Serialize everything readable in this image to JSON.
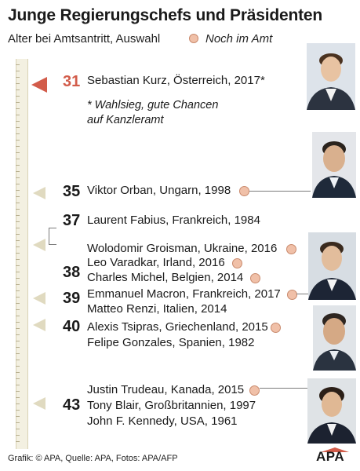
{
  "title": "Junge Regierungschefs und Präsidenten",
  "subtitle": "Alter bei Amtsantritt, Auswahl",
  "legend": {
    "in_office_label": "Noch im Amt"
  },
  "footnote": "* Wahlsieg, gute Chancen auf Kanzleramt",
  "footnote_lines": [
    "* Wahlsieg, gute Chancen",
    "auf Kanzleramt"
  ],
  "credit": "Grafik: © APA, Quelle: APA, Fotos: APA/AFP",
  "logo_text": "APA",
  "colors": {
    "highlight": "#d25c4a",
    "in_office_dot": "#f0c0a8",
    "ruler": "#f3f0e1",
    "marker": "#e0dac0"
  },
  "chart_data": {
    "type": "table",
    "ages": [
      31,
      35,
      37,
      38,
      39,
      40,
      43
    ],
    "entries": [
      {
        "age": 31,
        "text": "Sebastian Kurz, Österreich, 2017*",
        "person": "Sebastian Kurz",
        "country": "Österreich",
        "year": 2017,
        "in_office": false,
        "highlight": true
      },
      {
        "age": 35,
        "text": "Viktor Orban, Ungarn, 1998",
        "person": "Viktor Orban",
        "country": "Ungarn",
        "year": 1998,
        "in_office": true
      },
      {
        "age": 37,
        "text": "Laurent Fabius, Frankreich, 1984",
        "person": "Laurent Fabius",
        "country": "Frankreich",
        "year": 1984,
        "in_office": false
      },
      {
        "age": 38,
        "text": "Wolodomir Groisman, Ukraine, 2016",
        "person": "Wolodomir Groisman",
        "country": "Ukraine",
        "year": 2016,
        "in_office": true
      },
      {
        "age": 38,
        "text": "Leo Varadkar, Irland, 2016",
        "person": "Leo Varadkar",
        "country": "Irland",
        "year": 2016,
        "in_office": true
      },
      {
        "age": 38,
        "text": "Charles Michel, Belgien, 2014",
        "person": "Charles Michel",
        "country": "Belgien",
        "year": 2014,
        "in_office": true
      },
      {
        "age": 39,
        "text": "Emmanuel Macron, Frankreich, 2017",
        "person": "Emmanuel Macron",
        "country": "Frankreich",
        "year": 2017,
        "in_office": true
      },
      {
        "age": 39,
        "text": "Matteo Renzi, Italien, 2014",
        "person": "Matteo Renzi",
        "country": "Italien",
        "year": 2014,
        "in_office": false
      },
      {
        "age": 40,
        "text": "Alexis Tsipras, Griechenland, 2015",
        "person": "Alexis Tsipras",
        "country": "Griechenland",
        "year": 2015,
        "in_office": true
      },
      {
        "age": 40,
        "text": "Felipe Gonzales, Spanien, 1982",
        "person": "Felipe Gonzales",
        "country": "Spanien",
        "year": 1982,
        "in_office": false
      },
      {
        "age": 43,
        "text": "Justin Trudeau, Kanada, 2015",
        "person": "Justin Trudeau",
        "country": "Kanada",
        "year": 2015,
        "in_office": true
      },
      {
        "age": 43,
        "text": "Tony Blair, Großbritannien, 1997",
        "person": "Tony Blair",
        "country": "Großbritannien",
        "year": 1997,
        "in_office": false
      },
      {
        "age": 43,
        "text": "John F. Kennedy, USA, 1961",
        "person": "John F. Kennedy",
        "country": "USA",
        "year": 1961,
        "in_office": false
      }
    ]
  }
}
